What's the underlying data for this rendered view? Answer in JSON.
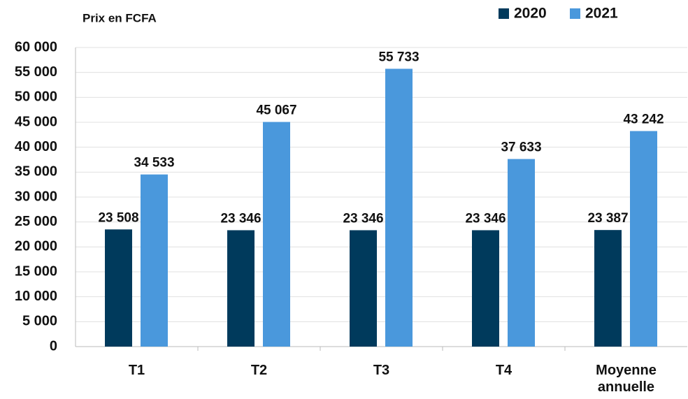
{
  "chart_data": {
    "type": "bar",
    "y_label": "Prix en FCFA",
    "categories": [
      "T1",
      "T2",
      "T3",
      "T4",
      "Moyenne annuelle"
    ],
    "series": [
      {
        "name": "2020",
        "color": "#003a5c",
        "values": [
          23508,
          23346,
          23346,
          23346,
          23387
        ],
        "value_labels": [
          "23 508",
          "23 346",
          "23 346",
          "23 346",
          "23 387"
        ]
      },
      {
        "name": "2021",
        "color": "#4a98dc",
        "values": [
          34533,
          45067,
          55733,
          37633,
          43242
        ],
        "value_labels": [
          "34 533",
          "45 067",
          "55 733",
          "37 633",
          "43 242"
        ]
      }
    ],
    "ylim": [
      0,
      60000
    ],
    "yticks": [
      {
        "value": 0,
        "label": "0"
      },
      {
        "value": 5000,
        "label": "5 000"
      },
      {
        "value": 10000,
        "label": "10 000"
      },
      {
        "value": 15000,
        "label": "15 000"
      },
      {
        "value": 20000,
        "label": "20 000"
      },
      {
        "value": 25000,
        "label": "25 000"
      },
      {
        "value": 30000,
        "label": "30 000"
      },
      {
        "value": 35000,
        "label": "35 000"
      },
      {
        "value": 40000,
        "label": "40 000"
      },
      {
        "value": 45000,
        "label": "45 000"
      },
      {
        "value": 50000,
        "label": "50 000"
      },
      {
        "value": 55000,
        "label": "55 000"
      },
      {
        "value": 60000,
        "label": "60 000"
      }
    ],
    "grid": true,
    "legend": "top-right"
  }
}
